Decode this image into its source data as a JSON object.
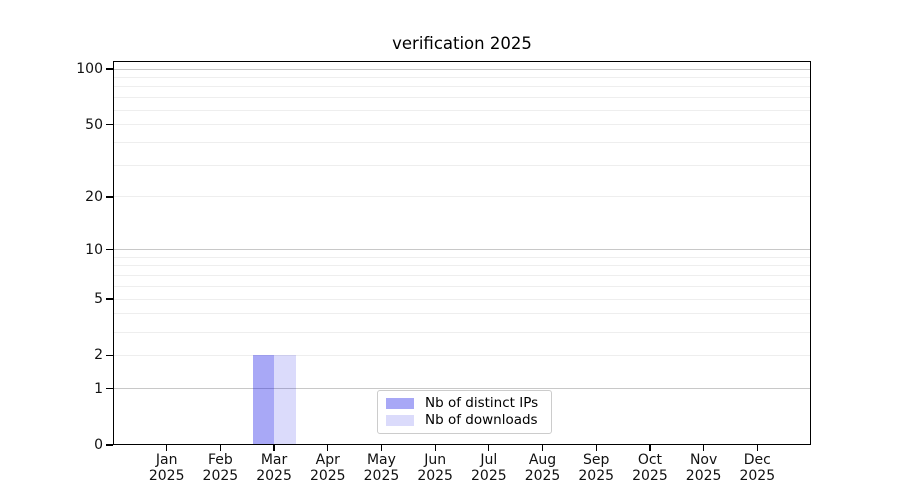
{
  "chart_data": {
    "type": "bar",
    "title": "verification 2025",
    "x_labels": [
      {
        "label": "Jan",
        "sub": "2025"
      },
      {
        "label": "Feb",
        "sub": "2025"
      },
      {
        "label": "Mar",
        "sub": "2025"
      },
      {
        "label": "Apr",
        "sub": "2025"
      },
      {
        "label": "May",
        "sub": "2025"
      },
      {
        "label": "Jun",
        "sub": "2025"
      },
      {
        "label": "Jul",
        "sub": "2025"
      },
      {
        "label": "Aug",
        "sub": "2025"
      },
      {
        "label": "Sep",
        "sub": "2025"
      },
      {
        "label": "Oct",
        "sub": "2025"
      },
      {
        "label": "Nov",
        "sub": "2025"
      },
      {
        "label": "Dec",
        "sub": "2025"
      }
    ],
    "series": [
      {
        "name": "Nb of distinct IPs",
        "color": "rgba(0,0,230,0.34)",
        "values": [
          0,
          0,
          2,
          0,
          0,
          0,
          0,
          0,
          0,
          0,
          0,
          0
        ]
      },
      {
        "name": "Nb of downloads",
        "color": "rgba(0,0,230,0.14)",
        "values": [
          0,
          0,
          2,
          0,
          0,
          0,
          0,
          0,
          0,
          0,
          0,
          0
        ]
      }
    ],
    "y_ticks": [
      0,
      1,
      2,
      5,
      10,
      20,
      50,
      100
    ],
    "y_scale": "log1p",
    "ylim": [
      0,
      110
    ],
    "grid": {
      "major_values": [
        1,
        10,
        100
      ],
      "minor_values": [
        2,
        3,
        4,
        5,
        6,
        7,
        8,
        9,
        20,
        30,
        40,
        50,
        60,
        70,
        80,
        90
      ],
      "major_color": "#c8c8c8",
      "minor_color": "#eeeeee"
    },
    "legend": {
      "position": "lower center"
    },
    "axis_color": "#000000",
    "background": "#ffffff"
  }
}
